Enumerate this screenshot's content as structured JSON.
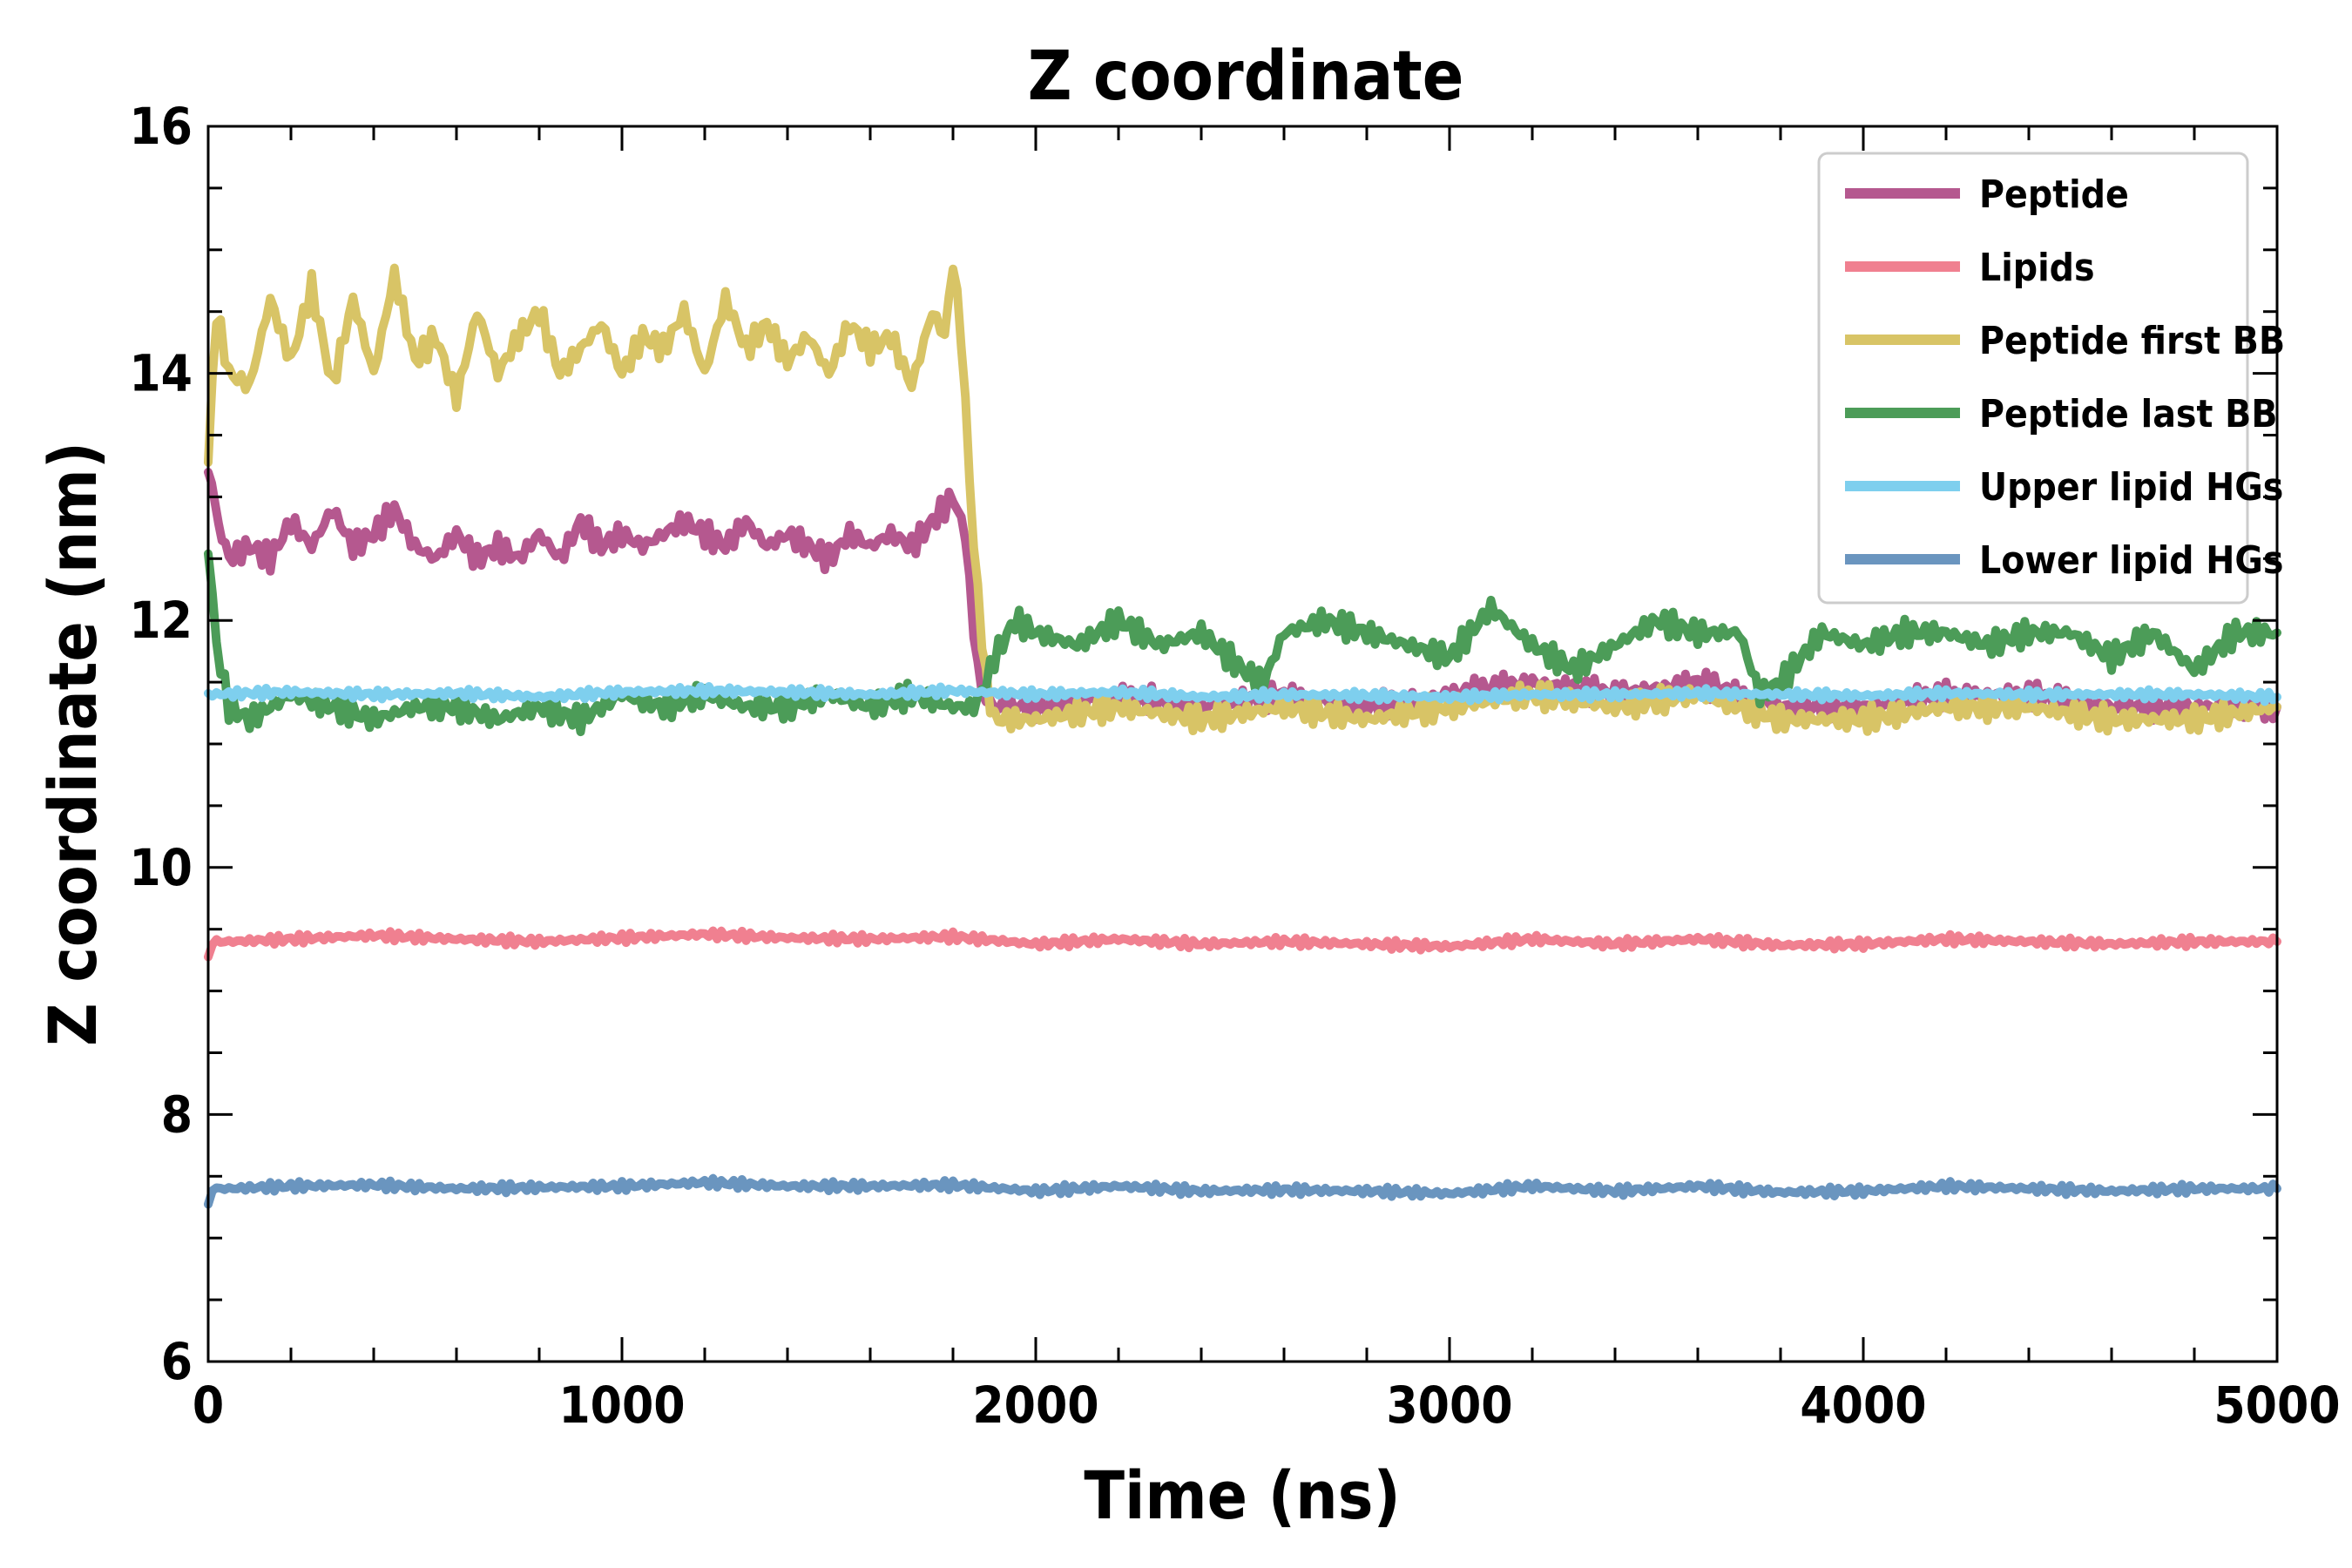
{
  "chart_data": {
    "type": "line",
    "title": "Z coordinate",
    "xlabel": "Time (ns)",
    "ylabel": "Z coordinate (nm)",
    "xlim": [
      0,
      5000
    ],
    "ylim": [
      6,
      16
    ],
    "xticks": [
      0,
      1000,
      2000,
      3000,
      4000,
      5000
    ],
    "yticks": [
      6,
      8,
      10,
      12,
      14,
      16
    ],
    "tick_labels_x": [
      "0",
      "1000",
      "2000",
      "3000",
      "4000",
      "5000"
    ],
    "tick_labels_y": [
      "6",
      "8",
      "10",
      "12",
      "14",
      "16"
    ],
    "grid": false,
    "legend_position": "top-right",
    "series": [
      {
        "name": "Peptide",
        "color": "#b5588f",
        "x": [
          0,
          25,
          50,
          100,
          150,
          200,
          250,
          300,
          350,
          400,
          450,
          500,
          550,
          600,
          650,
          700,
          750,
          800,
          850,
          900,
          950,
          1000,
          1050,
          1100,
          1150,
          1200,
          1250,
          1300,
          1350,
          1400,
          1450,
          1500,
          1550,
          1600,
          1650,
          1700,
          1750,
          1800,
          1830,
          1850,
          1870,
          1900,
          2000,
          2200,
          2400,
          2600,
          2800,
          3000,
          3200,
          3400,
          3600,
          3800,
          4000,
          4200,
          4400,
          4600,
          4800,
          5000
        ],
        "y": [
          13.2,
          12.8,
          12.5,
          12.6,
          12.5,
          12.8,
          12.6,
          12.9,
          12.6,
          12.7,
          12.9,
          12.6,
          12.5,
          12.7,
          12.5,
          12.6,
          12.5,
          12.7,
          12.5,
          12.8,
          12.6,
          12.7,
          12.6,
          12.7,
          12.8,
          12.7,
          12.6,
          12.8,
          12.6,
          12.7,
          12.6,
          12.5,
          12.7,
          12.6,
          12.7,
          12.6,
          12.8,
          13.0,
          12.7,
          11.9,
          11.4,
          11.3,
          11.3,
          11.4,
          11.3,
          11.4,
          11.3,
          11.4,
          11.5,
          11.4,
          11.5,
          11.3,
          11.3,
          11.4,
          11.4,
          11.3,
          11.3,
          11.3
        ]
      },
      {
        "name": "Lipids",
        "color": "#f08090",
        "x": [
          0,
          10,
          50,
          200,
          400,
          600,
          800,
          1000,
          1200,
          1400,
          1600,
          1800,
          2000,
          2200,
          2400,
          2600,
          2800,
          3000,
          3200,
          3400,
          3600,
          3800,
          4000,
          4200,
          4400,
          4600,
          4800,
          5000
        ],
        "y": [
          9.25,
          9.4,
          9.4,
          9.42,
          9.45,
          9.42,
          9.4,
          9.43,
          9.46,
          9.43,
          9.42,
          9.44,
          9.38,
          9.42,
          9.38,
          9.4,
          9.38,
          9.36,
          9.42,
          9.38,
          9.42,
          9.37,
          9.38,
          9.42,
          9.4,
          9.38,
          9.4,
          9.4
        ]
      },
      {
        "name": "Peptide first BB",
        "color": "#d8c466",
        "x": [
          0,
          20,
          50,
          100,
          150,
          200,
          250,
          300,
          350,
          400,
          450,
          500,
          550,
          600,
          650,
          700,
          750,
          800,
          850,
          900,
          950,
          1000,
          1050,
          1100,
          1150,
          1200,
          1250,
          1300,
          1350,
          1400,
          1450,
          1500,
          1550,
          1600,
          1650,
          1700,
          1750,
          1780,
          1800,
          1820,
          1850,
          1880,
          1900,
          2000,
          2200,
          2400,
          2600,
          2800,
          3000,
          3200,
          3400,
          3600,
          3800,
          4000,
          4200,
          4400,
          4600,
          4800,
          5000
        ],
        "y": [
          13.3,
          14.5,
          14.0,
          13.9,
          14.6,
          14.1,
          14.7,
          13.9,
          14.6,
          14.0,
          14.8,
          14.1,
          14.3,
          13.8,
          14.5,
          14.0,
          14.3,
          14.5,
          14.0,
          14.2,
          14.4,
          14.0,
          14.3,
          14.2,
          14.5,
          14.0,
          14.6,
          14.2,
          14.4,
          14.1,
          14.3,
          14.0,
          14.4,
          14.2,
          14.3,
          13.9,
          14.5,
          14.3,
          14.9,
          14.3,
          12.6,
          11.5,
          11.2,
          11.2,
          11.3,
          11.2,
          11.3,
          11.2,
          11.3,
          11.4,
          11.3,
          11.4,
          11.2,
          11.2,
          11.3,
          11.3,
          11.2,
          11.2,
          11.3
        ]
      },
      {
        "name": "Peptide last BB",
        "color": "#4c9c58",
        "x": [
          0,
          20,
          50,
          100,
          200,
          300,
          400,
          500,
          600,
          700,
          800,
          900,
          1000,
          1100,
          1200,
          1300,
          1400,
          1500,
          1600,
          1700,
          1800,
          1850,
          1880,
          1900,
          1950,
          2000,
          2100,
          2200,
          2300,
          2400,
          2500,
          2550,
          2600,
          2700,
          2800,
          2900,
          3000,
          3100,
          3200,
          3300,
          3400,
          3500,
          3600,
          3700,
          3750,
          3800,
          3900,
          4000,
          4100,
          4200,
          4300,
          4400,
          4500,
          4600,
          4700,
          4800,
          4900,
          5000
        ],
        "y": [
          12.6,
          11.8,
          11.3,
          11.2,
          11.4,
          11.3,
          11.2,
          11.3,
          11.3,
          11.2,
          11.3,
          11.2,
          11.4,
          11.3,
          11.4,
          11.3,
          11.3,
          11.4,
          11.3,
          11.4,
          11.3,
          11.3,
          11.5,
          11.7,
          12.0,
          11.9,
          11.8,
          12.0,
          11.8,
          11.9,
          11.6,
          11.5,
          11.9,
          12.0,
          11.9,
          11.8,
          11.7,
          12.1,
          11.8,
          11.6,
          11.8,
          12.0,
          11.9,
          11.9,
          11.4,
          11.5,
          11.9,
          11.8,
          11.9,
          11.9,
          11.8,
          11.9,
          11.9,
          11.7,
          11.9,
          11.6,
          11.9,
          11.9
        ]
      },
      {
        "name": "Upper lipid HGs",
        "color": "#7ecfee",
        "x": [
          0,
          200,
          400,
          600,
          800,
          1000,
          1200,
          1400,
          1600,
          1800,
          2000,
          2200,
          2400,
          2600,
          2800,
          3000,
          3200,
          3400,
          3600,
          3800,
          4000,
          4200,
          4400,
          4600,
          4800,
          5000
        ],
        "y": [
          11.4,
          11.42,
          11.4,
          11.41,
          11.38,
          11.42,
          11.43,
          11.42,
          11.4,
          11.43,
          11.4,
          11.42,
          11.38,
          11.4,
          11.39,
          11.38,
          11.4,
          11.4,
          11.41,
          11.4,
          11.39,
          11.41,
          11.4,
          11.4,
          11.4,
          11.38
        ]
      },
      {
        "name": "Lower lipid HGs",
        "color": "#6a95bf",
        "x": [
          0,
          10,
          50,
          200,
          400,
          600,
          800,
          1000,
          1200,
          1400,
          1600,
          1800,
          2000,
          2200,
          2400,
          2600,
          2800,
          3000,
          3200,
          3400,
          3600,
          3800,
          4000,
          4200,
          4400,
          4600,
          4800,
          5000
        ],
        "y": [
          7.25,
          7.4,
          7.4,
          7.42,
          7.43,
          7.4,
          7.41,
          7.42,
          7.45,
          7.42,
          7.42,
          7.43,
          7.38,
          7.42,
          7.38,
          7.39,
          7.38,
          7.36,
          7.42,
          7.38,
          7.42,
          7.37,
          7.38,
          7.42,
          7.4,
          7.38,
          7.4,
          7.4
        ]
      }
    ]
  }
}
